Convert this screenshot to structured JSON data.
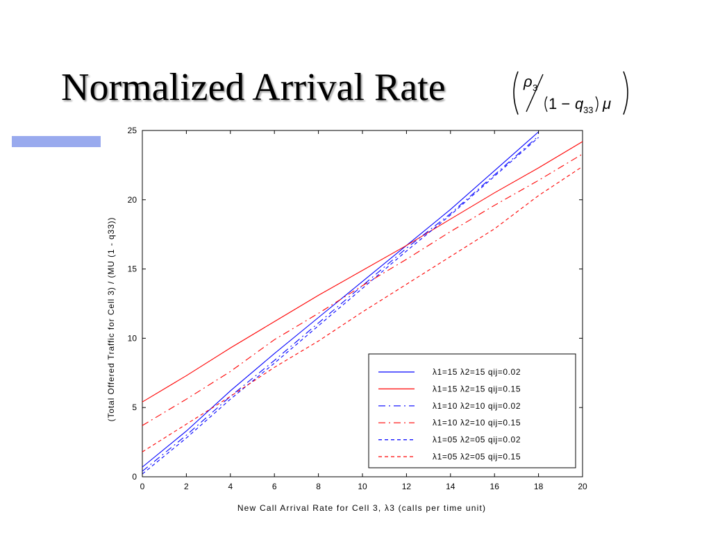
{
  "slide": {
    "title": "Normalized Arrival Rate",
    "formula": {
      "rho": "ρ",
      "rho_sub": "3",
      "one_minus": "1 − ",
      "q": "q",
      "q_sub": "33",
      "mu": "μ"
    }
  },
  "colors": {
    "accent_bar": "#99aaee",
    "blue": "#0000ff",
    "red": "#ff0000"
  },
  "chart_data": {
    "type": "line",
    "title": "",
    "xlabel": "New Call Arrival Rate for Cell 3, λ3 (calls per time unit)",
    "ylabel": "(Total Offered Traffic for Cell 3) / (MU (1 - q33))",
    "xlim": [
      0,
      20
    ],
    "ylim": [
      0,
      25
    ],
    "xticks": [
      "0",
      "2",
      "4",
      "6",
      "8",
      "10",
      "12",
      "14",
      "16",
      "18",
      "20"
    ],
    "yticks": [
      "0",
      "5",
      "10",
      "15",
      "20",
      "25"
    ],
    "grid": false,
    "legend_position": "lower-right",
    "series": [
      {
        "name": "λ1=15 λ2=15 qij=0.02",
        "color": "#0000ff",
        "style": "solid",
        "x": [
          0,
          2,
          4,
          6,
          8,
          10,
          12,
          14,
          16,
          18
        ],
        "y": [
          0.7,
          3.3,
          6.2,
          8.9,
          11.5,
          14.1,
          16.7,
          19.3,
          22.1,
          24.9
        ]
      },
      {
        "name": "λ1=15 λ2=15 qij=0.15",
        "color": "#ff0000",
        "style": "solid",
        "x": [
          0,
          2,
          4,
          6,
          8,
          10,
          12,
          14,
          16,
          18,
          20
        ],
        "y": [
          5.4,
          7.3,
          9.3,
          11.2,
          13.1,
          14.9,
          16.7,
          18.6,
          20.5,
          22.3,
          24.2
        ]
      },
      {
        "name": "λ1=10 λ2=10 qij=0.02",
        "color": "#0000ff",
        "style": "dashdot",
        "x": [
          0,
          2,
          4,
          6,
          8,
          10,
          12,
          14,
          16,
          18
        ],
        "y": [
          0.4,
          3.0,
          5.8,
          8.4,
          11.1,
          13.8,
          16.5,
          19.0,
          21.8,
          24.6
        ]
      },
      {
        "name": "λ1=10 λ2=10 qij=0.15",
        "color": "#ff0000",
        "style": "dashdot",
        "x": [
          0,
          2,
          4,
          6,
          8,
          10,
          12,
          14,
          16,
          18,
          20
        ],
        "y": [
          3.7,
          5.6,
          7.6,
          9.9,
          11.8,
          13.8,
          15.7,
          17.7,
          19.6,
          21.4,
          23.3
        ]
      },
      {
        "name": "λ1=05 λ2=05 qij=0.02",
        "color": "#0000ff",
        "style": "dashed",
        "x": [
          0,
          2,
          4,
          6,
          8,
          10,
          12,
          14,
          16,
          18
        ],
        "y": [
          0.2,
          2.8,
          5.6,
          8.2,
          10.9,
          13.6,
          16.3,
          18.9,
          21.7,
          24.5
        ]
      },
      {
        "name": "λ1=05 λ2=05 qij=0.15",
        "color": "#ff0000",
        "style": "dashed",
        "x": [
          0,
          2,
          4,
          6,
          8,
          10,
          12,
          14,
          16,
          18,
          20
        ],
        "y": [
          1.8,
          3.8,
          5.8,
          7.9,
          9.8,
          11.9,
          13.9,
          15.9,
          17.9,
          20.3,
          22.4
        ]
      }
    ]
  }
}
